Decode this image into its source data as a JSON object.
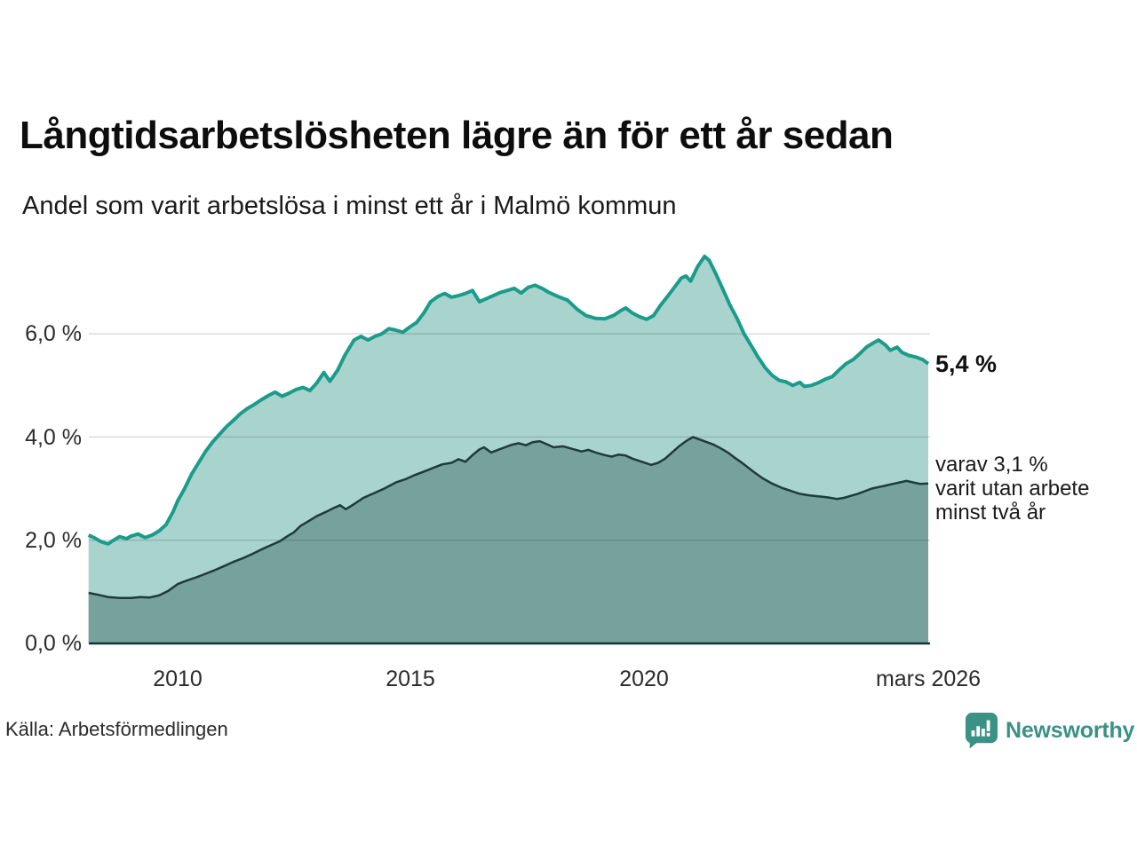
{
  "title": "Långtidsarbetslösheten lägre än för ett år sedan",
  "subtitle": "Andel som varit arbetslösa i minst ett år i Malmö kommun",
  "source": "Källa: Arbetsförmedlingen",
  "branding": {
    "name": "Newsworthy",
    "color": "#3a9186",
    "icon": "bar-chart-speech-bubble"
  },
  "annotations": {
    "latest_total": "5,4 %",
    "secondary_line1": "varav 3,1 %",
    "secondary_line2": "varit utan arbete",
    "secondary_line3": "minst två år"
  },
  "axes": {
    "y_ticks": [
      "6,0 %",
      "4,0 %",
      "2,0 %",
      "0,0 %"
    ],
    "x_ticks": [
      "2010",
      "2015",
      "2020",
      "mars 2026"
    ]
  },
  "chart_data": {
    "type": "area",
    "title": "Långtidsarbetslösheten lägre än för ett år sedan",
    "subtitle": "Andel som varit arbetslösa i minst ett år i Malmö kommun",
    "unit": "%",
    "x_axis": {
      "tick_labels": [
        "2010",
        "2015",
        "2020",
        "mars 2026"
      ],
      "tick_years": [
        2010,
        2015,
        2020,
        2026.17
      ],
      "range_years": [
        2008.08,
        2026.17
      ]
    },
    "y_axis": {
      "tick_values": [
        0,
        2,
        4,
        6
      ],
      "tick_labels": [
        "0,0 %",
        "2,0 %",
        "4,0 %",
        "6,0 %"
      ],
      "range": [
        0,
        7.75
      ]
    },
    "gridlines_percent": [
      2,
      4,
      6
    ],
    "grid": true,
    "legend_position": "none",
    "series": [
      {
        "name": "Arbetslösa minst ett år",
        "latest_label": "5,4 %",
        "latest_value": 5.4,
        "line_color": "#1b9c8a",
        "fill_color": "#a9d4ce",
        "points": [
          [
            2008.08,
            2.1
          ],
          [
            2008.2,
            2.05
          ],
          [
            2008.35,
            1.97
          ],
          [
            2008.5,
            1.93
          ],
          [
            2008.62,
            2.0
          ],
          [
            2008.75,
            2.07
          ],
          [
            2008.9,
            2.03
          ],
          [
            2009.0,
            2.08
          ],
          [
            2009.15,
            2.12
          ],
          [
            2009.3,
            2.05
          ],
          [
            2009.45,
            2.1
          ],
          [
            2009.6,
            2.18
          ],
          [
            2009.75,
            2.3
          ],
          [
            2009.9,
            2.55
          ],
          [
            2010.0,
            2.76
          ],
          [
            2010.15,
            3.0
          ],
          [
            2010.3,
            3.28
          ],
          [
            2010.45,
            3.5
          ],
          [
            2010.6,
            3.72
          ],
          [
            2010.75,
            3.9
          ],
          [
            2010.9,
            4.05
          ],
          [
            2011.05,
            4.2
          ],
          [
            2011.2,
            4.32
          ],
          [
            2011.35,
            4.45
          ],
          [
            2011.5,
            4.55
          ],
          [
            2011.65,
            4.63
          ],
          [
            2011.8,
            4.72
          ],
          [
            2011.95,
            4.8
          ],
          [
            2012.1,
            4.87
          ],
          [
            2012.25,
            4.79
          ],
          [
            2012.4,
            4.85
          ],
          [
            2012.55,
            4.92
          ],
          [
            2012.7,
            4.96
          ],
          [
            2012.85,
            4.9
          ],
          [
            2013.0,
            5.05
          ],
          [
            2013.15,
            5.25
          ],
          [
            2013.28,
            5.08
          ],
          [
            2013.45,
            5.3
          ],
          [
            2013.6,
            5.58
          ],
          [
            2013.8,
            5.88
          ],
          [
            2013.95,
            5.95
          ],
          [
            2014.1,
            5.88
          ],
          [
            2014.25,
            5.95
          ],
          [
            2014.4,
            6.0
          ],
          [
            2014.55,
            6.1
          ],
          [
            2014.7,
            6.07
          ],
          [
            2014.85,
            6.03
          ],
          [
            2015.0,
            6.13
          ],
          [
            2015.15,
            6.22
          ],
          [
            2015.3,
            6.4
          ],
          [
            2015.45,
            6.62
          ],
          [
            2015.6,
            6.72
          ],
          [
            2015.75,
            6.78
          ],
          [
            2015.9,
            6.71
          ],
          [
            2016.05,
            6.74
          ],
          [
            2016.2,
            6.78
          ],
          [
            2016.35,
            6.84
          ],
          [
            2016.5,
            6.62
          ],
          [
            2016.65,
            6.68
          ],
          [
            2016.8,
            6.74
          ],
          [
            2016.95,
            6.8
          ],
          [
            2017.1,
            6.84
          ],
          [
            2017.25,
            6.88
          ],
          [
            2017.4,
            6.79
          ],
          [
            2017.55,
            6.9
          ],
          [
            2017.7,
            6.94
          ],
          [
            2017.85,
            6.88
          ],
          [
            2018.0,
            6.8
          ],
          [
            2018.2,
            6.72
          ],
          [
            2018.4,
            6.65
          ],
          [
            2018.6,
            6.48
          ],
          [
            2018.8,
            6.35
          ],
          [
            2019.0,
            6.3
          ],
          [
            2019.2,
            6.29
          ],
          [
            2019.4,
            6.36
          ],
          [
            2019.55,
            6.45
          ],
          [
            2019.65,
            6.5
          ],
          [
            2019.8,
            6.4
          ],
          [
            2019.95,
            6.33
          ],
          [
            2020.1,
            6.28
          ],
          [
            2020.25,
            6.35
          ],
          [
            2020.4,
            6.55
          ],
          [
            2020.55,
            6.72
          ],
          [
            2020.7,
            6.9
          ],
          [
            2020.85,
            7.08
          ],
          [
            2020.95,
            7.12
          ],
          [
            2021.05,
            7.02
          ],
          [
            2021.2,
            7.3
          ],
          [
            2021.35,
            7.5
          ],
          [
            2021.45,
            7.42
          ],
          [
            2021.6,
            7.15
          ],
          [
            2021.75,
            6.85
          ],
          [
            2021.9,
            6.55
          ],
          [
            2022.05,
            6.3
          ],
          [
            2022.2,
            6.0
          ],
          [
            2022.35,
            5.78
          ],
          [
            2022.5,
            5.55
          ],
          [
            2022.65,
            5.35
          ],
          [
            2022.8,
            5.2
          ],
          [
            2022.95,
            5.1
          ],
          [
            2023.1,
            5.07
          ],
          [
            2023.25,
            5.0
          ],
          [
            2023.4,
            5.06
          ],
          [
            2023.5,
            4.98
          ],
          [
            2023.65,
            5.0
          ],
          [
            2023.8,
            5.05
          ],
          [
            2023.95,
            5.12
          ],
          [
            2024.1,
            5.17
          ],
          [
            2024.25,
            5.3
          ],
          [
            2024.4,
            5.42
          ],
          [
            2024.55,
            5.5
          ],
          [
            2024.7,
            5.62
          ],
          [
            2024.85,
            5.75
          ],
          [
            2025.0,
            5.83
          ],
          [
            2025.1,
            5.88
          ],
          [
            2025.25,
            5.78
          ],
          [
            2025.35,
            5.68
          ],
          [
            2025.5,
            5.74
          ],
          [
            2025.6,
            5.64
          ],
          [
            2025.75,
            5.58
          ],
          [
            2025.9,
            5.55
          ],
          [
            2026.05,
            5.5
          ],
          [
            2026.17,
            5.42
          ]
        ]
      },
      {
        "name": "Varit utan arbete minst två år",
        "latest_label": "3,1 %",
        "latest_value": 3.1,
        "line_color": "#1e3b37",
        "fill_color": "#77a29c",
        "points": [
          [
            2008.08,
            0.98
          ],
          [
            2008.3,
            0.94
          ],
          [
            2008.5,
            0.9
          ],
          [
            2008.75,
            0.88
          ],
          [
            2009.0,
            0.88
          ],
          [
            2009.2,
            0.9
          ],
          [
            2009.4,
            0.89
          ],
          [
            2009.6,
            0.93
          ],
          [
            2009.8,
            1.02
          ],
          [
            2010.0,
            1.15
          ],
          [
            2010.2,
            1.22
          ],
          [
            2010.4,
            1.28
          ],
          [
            2010.6,
            1.35
          ],
          [
            2010.8,
            1.42
          ],
          [
            2011.0,
            1.5
          ],
          [
            2011.2,
            1.58
          ],
          [
            2011.4,
            1.65
          ],
          [
            2011.6,
            1.73
          ],
          [
            2011.8,
            1.82
          ],
          [
            2012.0,
            1.9
          ],
          [
            2012.2,
            1.98
          ],
          [
            2012.35,
            2.07
          ],
          [
            2012.5,
            2.15
          ],
          [
            2012.65,
            2.28
          ],
          [
            2012.8,
            2.36
          ],
          [
            2013.0,
            2.47
          ],
          [
            2013.2,
            2.55
          ],
          [
            2013.35,
            2.62
          ],
          [
            2013.5,
            2.68
          ],
          [
            2013.62,
            2.6
          ],
          [
            2013.8,
            2.7
          ],
          [
            2014.0,
            2.82
          ],
          [
            2014.2,
            2.9
          ],
          [
            2014.45,
            3.0
          ],
          [
            2014.7,
            3.12
          ],
          [
            2014.9,
            3.18
          ],
          [
            2015.1,
            3.26
          ],
          [
            2015.3,
            3.33
          ],
          [
            2015.5,
            3.4
          ],
          [
            2015.7,
            3.47
          ],
          [
            2015.9,
            3.5
          ],
          [
            2016.05,
            3.57
          ],
          [
            2016.2,
            3.52
          ],
          [
            2016.35,
            3.65
          ],
          [
            2016.5,
            3.76
          ],
          [
            2016.6,
            3.8
          ],
          [
            2016.75,
            3.7
          ],
          [
            2016.9,
            3.75
          ],
          [
            2017.05,
            3.8
          ],
          [
            2017.2,
            3.85
          ],
          [
            2017.35,
            3.88
          ],
          [
            2017.5,
            3.84
          ],
          [
            2017.65,
            3.9
          ],
          [
            2017.8,
            3.92
          ],
          [
            2017.95,
            3.86
          ],
          [
            2018.1,
            3.8
          ],
          [
            2018.3,
            3.82
          ],
          [
            2018.5,
            3.77
          ],
          [
            2018.7,
            3.72
          ],
          [
            2018.85,
            3.75
          ],
          [
            2019.0,
            3.7
          ],
          [
            2019.2,
            3.65
          ],
          [
            2019.35,
            3.62
          ],
          [
            2019.5,
            3.66
          ],
          [
            2019.65,
            3.64
          ],
          [
            2019.8,
            3.58
          ],
          [
            2020.0,
            3.52
          ],
          [
            2020.2,
            3.46
          ],
          [
            2020.35,
            3.5
          ],
          [
            2020.5,
            3.58
          ],
          [
            2020.65,
            3.7
          ],
          [
            2020.8,
            3.82
          ],
          [
            2020.95,
            3.92
          ],
          [
            2021.1,
            4.0
          ],
          [
            2021.25,
            3.95
          ],
          [
            2021.4,
            3.9
          ],
          [
            2021.55,
            3.85
          ],
          [
            2021.7,
            3.78
          ],
          [
            2021.85,
            3.7
          ],
          [
            2022.0,
            3.6
          ],
          [
            2022.2,
            3.47
          ],
          [
            2022.4,
            3.33
          ],
          [
            2022.6,
            3.2
          ],
          [
            2022.8,
            3.1
          ],
          [
            2023.0,
            3.02
          ],
          [
            2023.2,
            2.96
          ],
          [
            2023.4,
            2.9
          ],
          [
            2023.6,
            2.87
          ],
          [
            2023.8,
            2.85
          ],
          [
            2024.0,
            2.83
          ],
          [
            2024.2,
            2.8
          ],
          [
            2024.35,
            2.82
          ],
          [
            2024.5,
            2.86
          ],
          [
            2024.65,
            2.9
          ],
          [
            2024.8,
            2.95
          ],
          [
            2024.95,
            3.0
          ],
          [
            2025.1,
            3.03
          ],
          [
            2025.25,
            3.06
          ],
          [
            2025.4,
            3.09
          ],
          [
            2025.55,
            3.12
          ],
          [
            2025.7,
            3.15
          ],
          [
            2025.85,
            3.12
          ],
          [
            2026.0,
            3.09
          ],
          [
            2026.17,
            3.1
          ]
        ]
      }
    ]
  }
}
